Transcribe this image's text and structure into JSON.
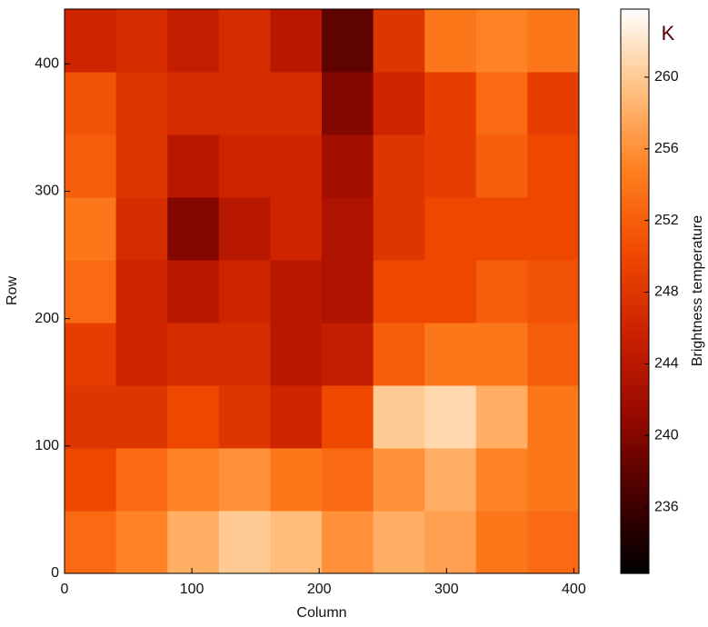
{
  "chart_data": {
    "type": "heatmap",
    "x_label": "Column",
    "y_label": "Row",
    "colorbar_label": "Brightness temperature",
    "colorbar_unit": "K",
    "xlim": [
      0,
      404
    ],
    "ylim": [
      0,
      443
    ],
    "xticks": [
      0,
      100,
      200,
      300,
      400
    ],
    "yticks": [
      0,
      100,
      200,
      300,
      400
    ],
    "clim": [
      232.3,
      263.8
    ],
    "cticks": [
      236,
      240,
      244,
      248,
      252,
      256,
      260
    ],
    "colormap": [
      "#000000",
      "#4a0000",
      "#9a0a00",
      "#cc2200",
      "#f04a00",
      "#ff8020",
      "#ffc080",
      "#ffffff"
    ],
    "values": [
      [
        253,
        255,
        258,
        260,
        259,
        256,
        258,
        257,
        254,
        253
      ],
      [
        250,
        253,
        255,
        256,
        254,
        253,
        256,
        258,
        255,
        254
      ],
      [
        248,
        248,
        250,
        248,
        246,
        250,
        260,
        261,
        258,
        254
      ],
      [
        249,
        246,
        247,
        247,
        244,
        245,
        252,
        254,
        254,
        252
      ],
      [
        253,
        246,
        244,
        246,
        244,
        243,
        250,
        250,
        252,
        251
      ],
      [
        254,
        247,
        240,
        244,
        246,
        243,
        248,
        250,
        250,
        250
      ],
      [
        252,
        248,
        244,
        246,
        246,
        242,
        248,
        249,
        252,
        250
      ],
      [
        251,
        248,
        247,
        247,
        247,
        240,
        246,
        249,
        253,
        249
      ],
      [
        246,
        247,
        245,
        247,
        244,
        238,
        248,
        254,
        255,
        254
      ]
    ]
  }
}
